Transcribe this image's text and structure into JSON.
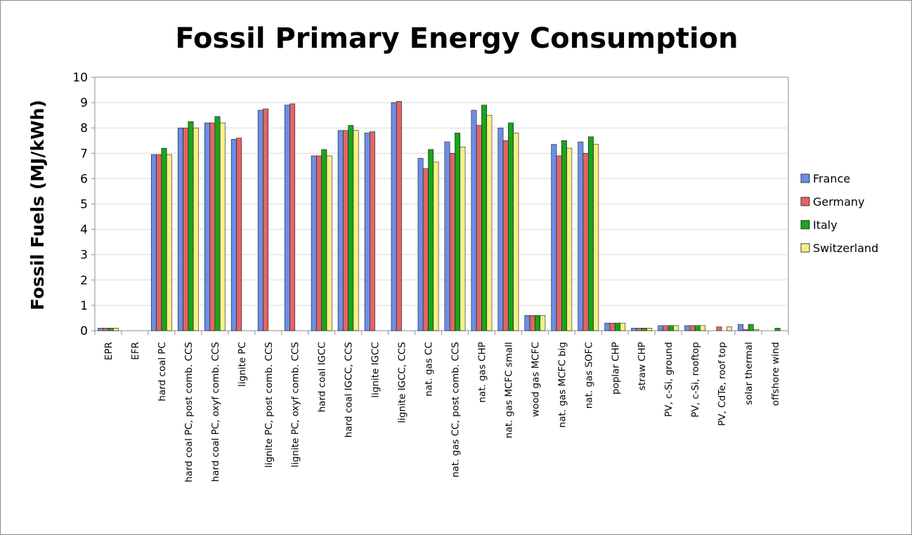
{
  "chart_data": {
    "type": "bar",
    "title": "Fossil Primary Energy Consumption",
    "ylabel": "Fossil Fuels (MJ/kWh)",
    "xlabel": "",
    "ylim": [
      0,
      10
    ],
    "yticks": [
      0,
      1,
      2,
      3,
      4,
      5,
      6,
      7,
      8,
      9,
      10
    ],
    "grid": true,
    "legend_position": "right",
    "categories": [
      "EPR",
      "EFR",
      "hard coal PC",
      "hard coal PC, post comb. CCS",
      "hard coal PC, oxyf comb. CCS",
      "lignite PC",
      "lignite PC, post comb. CCS",
      "lignite PC, oxyf comb. CCS",
      "hard coal IGCC",
      "hard coal IGCC, CCS",
      "lignite IGCC",
      "lignite IGCC, CCS",
      "nat. gas CC",
      "nat. gas CC, post comb. CCS",
      "nat. gas CHP",
      "nat. gas MCFC small",
      "wood gas MCFC",
      "nat. gas MCFC big",
      "nat. gas SOFC",
      "poplar CHP",
      "straw CHP",
      "PV, c-Si, ground",
      "PV, c-Si, rooftop",
      "PV, CdTe, roof top",
      "solar thermal",
      "offshore wind"
    ],
    "series": [
      {
        "name": "France",
        "color": "#6b8fe6",
        "values": [
          0.1,
          0,
          6.95,
          8.0,
          8.2,
          7.55,
          8.7,
          8.9,
          6.9,
          7.9,
          7.8,
          9.0,
          6.8,
          7.45,
          8.7,
          8.0,
          0.6,
          7.35,
          7.45,
          0.3,
          0.1,
          0.2,
          0.2,
          0,
          0.25,
          0
        ]
      },
      {
        "name": "Germany",
        "color": "#e06666",
        "values": [
          0.1,
          0,
          6.95,
          8.0,
          8.2,
          7.6,
          8.75,
          8.95,
          6.9,
          7.9,
          7.85,
          9.05,
          6.4,
          7.0,
          8.1,
          7.5,
          0.6,
          6.9,
          7.0,
          0.3,
          0.1,
          0.2,
          0.2,
          0.15,
          0.05,
          0
        ]
      },
      {
        "name": "Italy",
        "color": "#1aa51a",
        "values": [
          0.1,
          0,
          7.2,
          8.25,
          8.45,
          0,
          0,
          0,
          7.15,
          8.1,
          0,
          0,
          7.15,
          7.8,
          8.9,
          8.2,
          0.6,
          7.5,
          7.65,
          0.3,
          0.1,
          0.2,
          0.2,
          0,
          0.25,
          0.1
        ]
      },
      {
        "name": "Switzerland",
        "color": "#f5f086",
        "values": [
          0.1,
          0,
          6.95,
          8.0,
          8.2,
          0,
          0,
          0,
          6.9,
          7.9,
          0,
          0,
          6.65,
          7.25,
          8.5,
          7.8,
          0.6,
          7.2,
          7.35,
          0.3,
          0.1,
          0.2,
          0.2,
          0.15,
          0.05,
          0
        ]
      }
    ]
  }
}
